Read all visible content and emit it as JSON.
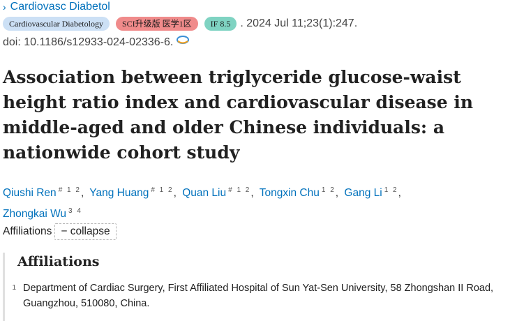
{
  "journal": {
    "name": "Cardiovasc Diabetol",
    "chevron_icon": "chevron-right-icon"
  },
  "badges": {
    "journal_badge": "Cardiovascular Diabetology",
    "sci_badge": "SCI升级版 医学1区",
    "if_badge": "IF 8.5"
  },
  "pub_date": ". 2024 Jul 11;23(1):247.",
  "doi": "doi: 10.1186/s12933-024-02336-6.",
  "title": "Association between triglyceride glucose-waist height ratio index and cardiovascular disease in middle-aged and older Chinese individuals: a nationwide cohort study",
  "authors": [
    {
      "name": "Qiushi Ren",
      "sup": "# 1 2"
    },
    {
      "name": "Yang Huang",
      "sup": "# 1 2"
    },
    {
      "name": "Quan Liu",
      "sup": "# 1 2"
    },
    {
      "name": "Tongxin Chu",
      "sup": "1 2"
    },
    {
      "name": "Gang Li",
      "sup": "1 2"
    },
    {
      "name": "Zhongkai Wu",
      "sup": "3 4"
    }
  ],
  "affiliations_toggle": {
    "label": "Affiliations",
    "button": "− collapse"
  },
  "affiliations": {
    "heading": "Affiliations",
    "items": [
      {
        "num": "1",
        "text": "Department of Cardiac Surgery, First Affiliated Hospital of Sun Yat-Sen University, 58 Zhongshan II Road, Guangzhou, 510080, China."
      }
    ]
  },
  "colors": {
    "link": "#0071bc",
    "sci_badge": "#f08b8b",
    "if_badge": "#7fd3c2",
    "journal_badge": "#cce0f5"
  }
}
